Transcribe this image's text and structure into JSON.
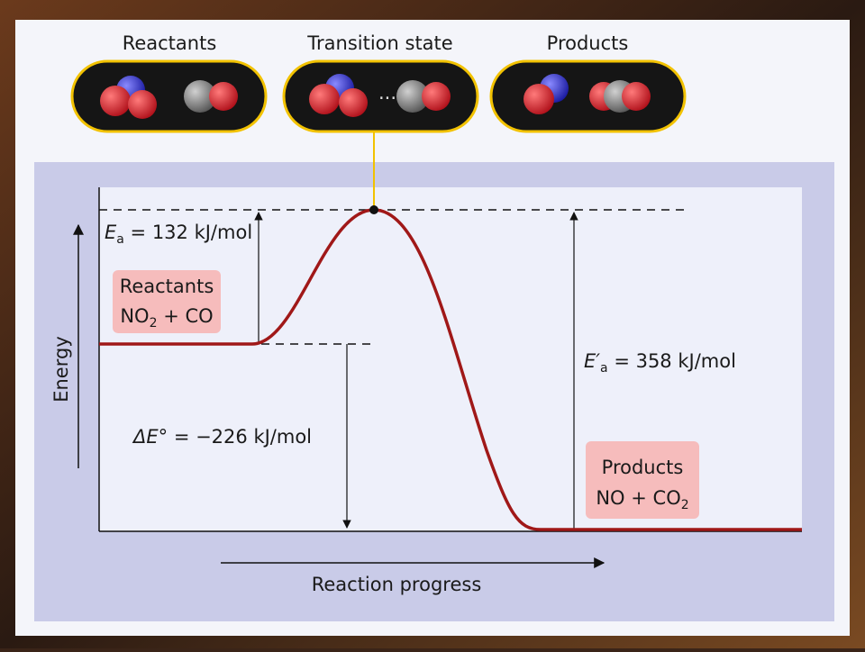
{
  "header": {
    "labels": [
      "Reactants",
      "Transition state",
      "Products"
    ]
  },
  "diagram": {
    "y_axis_label": "Energy",
    "x_axis_label": "Reaction progress",
    "reactants": {
      "title": "Reactants",
      "formula_a": "NO",
      "formula_sub": "2",
      "formula_b": " + CO"
    },
    "products": {
      "title": "Products",
      "formula_a": "NO + CO",
      "formula_sub": "2"
    },
    "activation_energy": {
      "symbol": "E",
      "subscript": "a",
      "text": " = 132 kJ/mol"
    },
    "reverse_activation_energy": {
      "symbol": "E′",
      "subscript": "a",
      "text": " = 358 kJ/mol"
    },
    "energy_change": {
      "symbol": "ΔE°",
      "text": " = −226 kJ/mol"
    }
  }
}
